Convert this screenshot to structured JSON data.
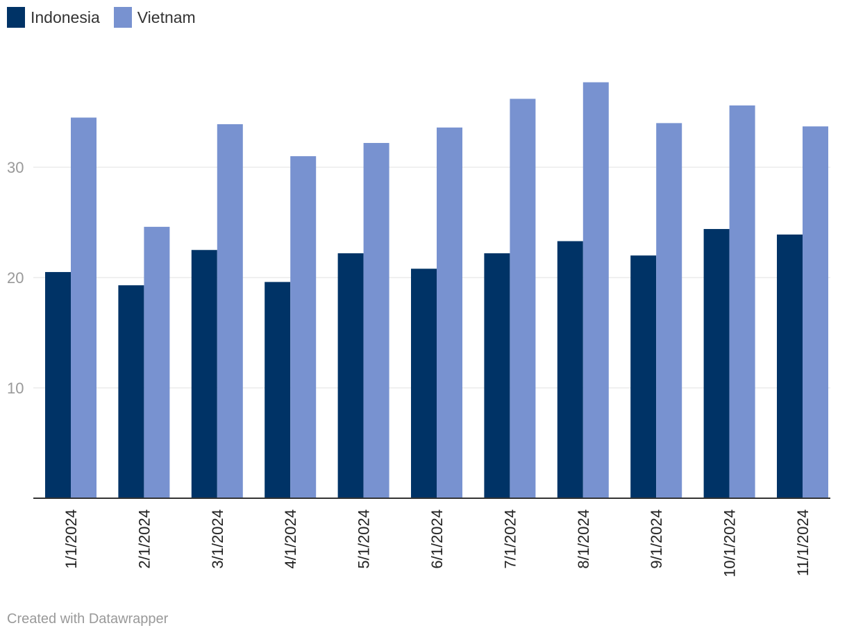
{
  "colors": {
    "indonesia": "#003366",
    "vietnam": "#7892d0",
    "grid": "#e2e2e2",
    "axis": "#333333"
  },
  "legend": {
    "items": [
      {
        "label": "Indonesia",
        "color": "#003366"
      },
      {
        "label": "Vietnam",
        "color": "#7892d0"
      }
    ]
  },
  "footer": {
    "credit": "Created with Datawrapper"
  },
  "chart_data": {
    "type": "bar",
    "categories": [
      "1/1/2024",
      "2/1/2024",
      "3/1/2024",
      "4/1/2024",
      "5/1/2024",
      "6/1/2024",
      "7/1/2024",
      "8/1/2024",
      "9/1/2024",
      "10/1/2024",
      "11/1/2024"
    ],
    "series": [
      {
        "name": "Indonesia",
        "values": [
          20.5,
          19.3,
          22.5,
          19.6,
          22.2,
          20.8,
          22.2,
          23.3,
          22.0,
          24.4,
          23.9
        ]
      },
      {
        "name": "Vietnam",
        "values": [
          34.5,
          24.6,
          33.9,
          31.0,
          32.2,
          33.6,
          36.2,
          37.7,
          34.0,
          35.6,
          33.7
        ]
      }
    ],
    "yticks": [
      10,
      20,
      30
    ],
    "ylim": [
      0,
      40
    ],
    "title": "",
    "xlabel": "",
    "ylabel": "",
    "grid": true,
    "legend_position": "top-left"
  }
}
